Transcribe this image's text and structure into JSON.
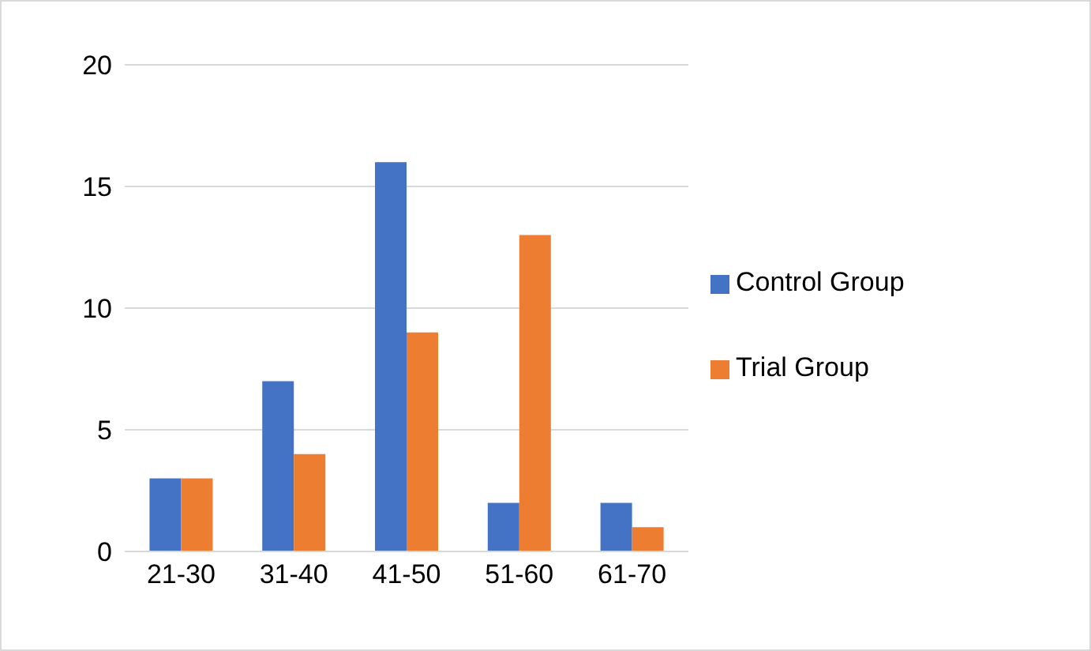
{
  "chart_data": {
    "type": "bar",
    "categories": [
      "21-30",
      "31-40",
      "41-50",
      "51-60",
      "61-70"
    ],
    "series": [
      {
        "name": "Control Group",
        "color": "#4472c4",
        "values": [
          3,
          7,
          16,
          2,
          2
        ]
      },
      {
        "name": "Trial Group",
        "color": "#ed7d31",
        "values": [
          3,
          4,
          9,
          13,
          1
        ]
      }
    ],
    "ylim": [
      0,
      20
    ],
    "yticks": [
      0,
      5,
      10,
      15,
      20
    ],
    "grid": "y",
    "legend": "right"
  }
}
